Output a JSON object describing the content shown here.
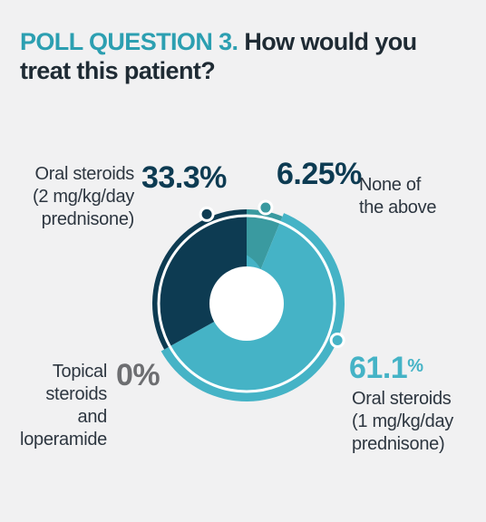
{
  "header": {
    "tag": "POLL QUESTION 3.",
    "question": "How would you treat this patient?"
  },
  "colors": {
    "background": "#f1f1f2",
    "accent": "#2c9fb1",
    "dark_navy": "#0d3b52",
    "teal": "#45b3c6",
    "dark_teal": "#3a9aa0",
    "gray": "#6d6e71"
  },
  "chart_data": {
    "type": "pie",
    "variant": "donut",
    "categories": [
      "None of the above",
      "Oral steroids (1 mg/kg/day prednisone)",
      "Topical steroids and loperamide",
      "Oral steroids (2 mg/kg/day prednisone)"
    ],
    "values": [
      6.25,
      61.1,
      0,
      33.3
    ],
    "value_labels": [
      "6.25%",
      "61.1%",
      "0%",
      "33.3%"
    ],
    "slice_colors": [
      "#3a9aa0",
      "#45b3c6",
      "#6d6e71",
      "#0d3b52"
    ]
  },
  "labels": {
    "none": {
      "line1": "None of",
      "line2": "the above",
      "pct": "6.25%"
    },
    "oral1": {
      "line1": "Oral steroids",
      "line2": "(1 mg/kg/day",
      "line3": "prednisone)",
      "pct_main": "61.1",
      "pct_sign": "%"
    },
    "topical": {
      "line1": "Topical",
      "line2": "steroids",
      "line3": "and",
      "line4": "loperamide",
      "pct": "0%"
    },
    "oral2": {
      "line1": "Oral steroids",
      "line2": "(2 mg/kg/day",
      "line3": "prednisone)",
      "pct": "33.3%"
    }
  }
}
